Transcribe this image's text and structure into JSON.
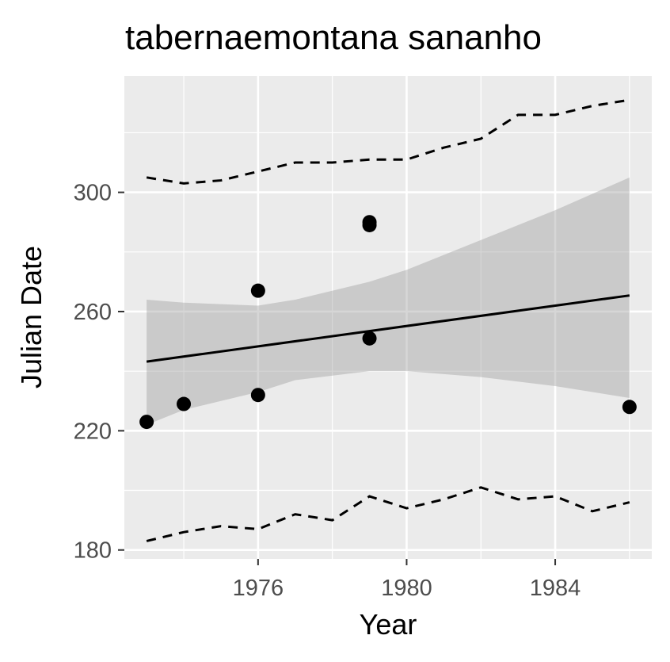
{
  "chart_data": {
    "type": "scatter",
    "title": "tabernaemontana sananho",
    "xlabel": "Year",
    "ylabel": "Julian Date",
    "xlim": [
      1972.4,
      1986.6
    ],
    "ylim": [
      177,
      339
    ],
    "x_ticks": [
      1976,
      1980,
      1984
    ],
    "y_ticks": [
      180,
      220,
      260,
      300
    ],
    "grid": true,
    "panel_background": "#ebebeb",
    "points": [
      {
        "x": 1973,
        "y": 223
      },
      {
        "x": 1974,
        "y": 229
      },
      {
        "x": 1976,
        "y": 232
      },
      {
        "x": 1976,
        "y": 267
      },
      {
        "x": 1979,
        "y": 251
      },
      {
        "x": 1979,
        "y": 289
      },
      {
        "x": 1979,
        "y": 290
      },
      {
        "x": 1986,
        "y": 228
      }
    ],
    "trend_line": {
      "x": [
        1973,
        1986
      ],
      "y": [
        243.2,
        265.4
      ]
    },
    "confidence_band": {
      "x": [
        1973,
        1974,
        1976,
        1977,
        1979,
        1980,
        1982,
        1984,
        1986
      ],
      "lower": [
        222,
        227,
        233,
        237,
        240,
        240,
        238,
        235,
        231
      ],
      "upper": [
        264,
        263,
        262,
        264,
        270,
        274,
        284,
        294,
        305
      ]
    },
    "upper_dashed": {
      "x": [
        1973,
        1974,
        1975,
        1976,
        1977,
        1978,
        1979,
        1980,
        1981,
        1982,
        1983,
        1984,
        1985,
        1986
      ],
      "y": [
        305,
        303,
        304,
        307,
        310,
        310,
        311,
        311,
        315,
        318,
        326,
        326,
        329,
        331
      ]
    },
    "lower_dashed": {
      "x": [
        1973,
        1974,
        1975,
        1976,
        1977,
        1978,
        1979,
        1980,
        1981,
        1982,
        1983,
        1984,
        1985,
        1986
      ],
      "y": [
        183,
        186,
        188,
        187,
        192,
        190,
        198,
        194,
        197,
        201,
        197,
        198,
        193,
        196
      ]
    }
  }
}
